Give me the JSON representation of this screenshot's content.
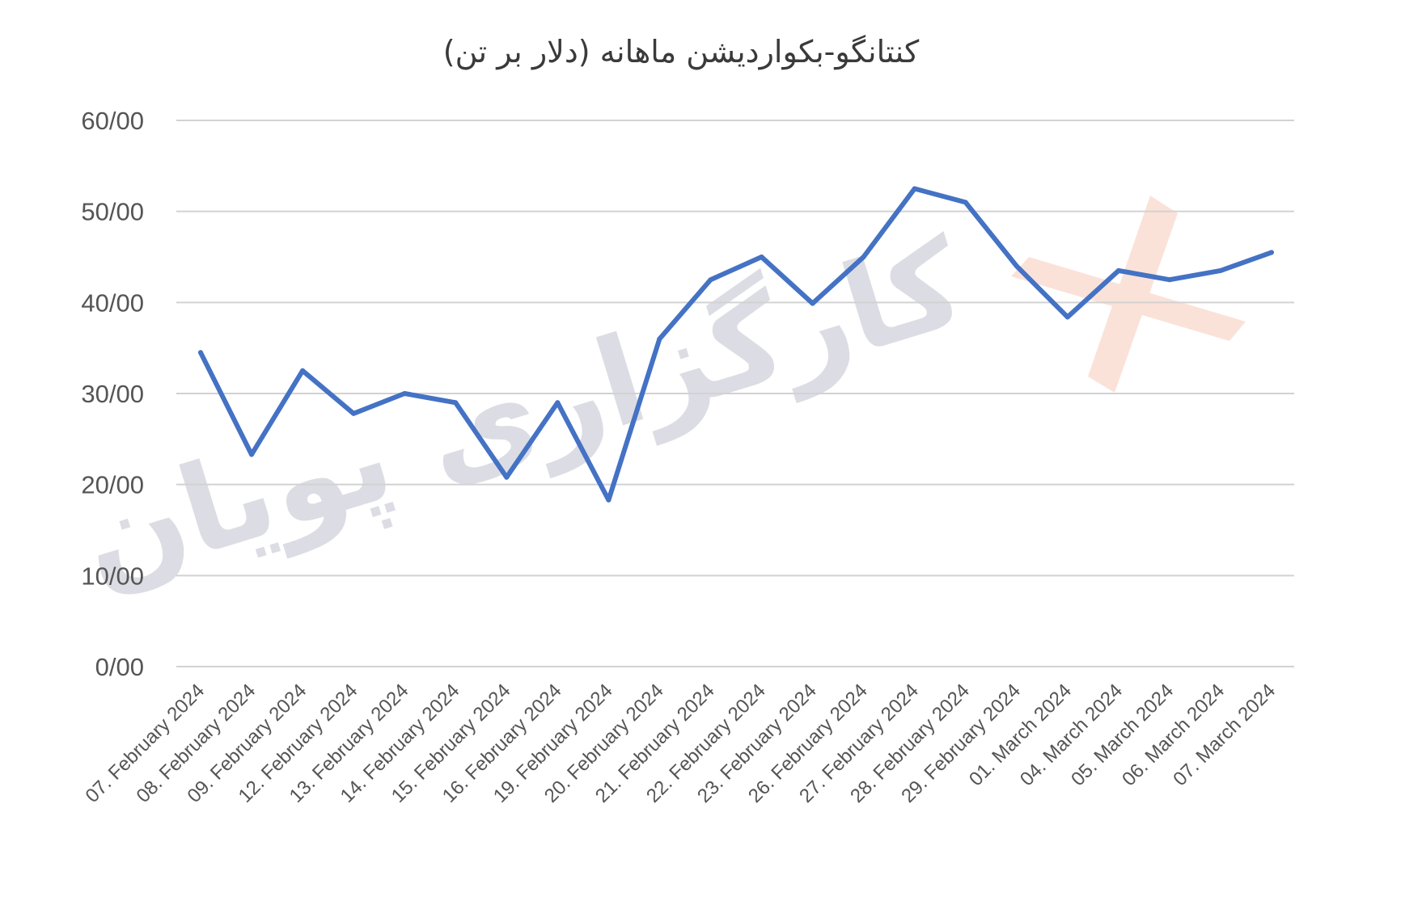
{
  "chart_data": {
    "type": "line",
    "title": "کنتانگو-بکواردیشن ماهانه (دلار بر تن)",
    "xlabel": "",
    "ylabel": "",
    "ylim": [
      0,
      60
    ],
    "yticks": [
      "0/00",
      "10/00",
      "20/00",
      "30/00",
      "40/00",
      "50/00",
      "60/00"
    ],
    "grid": true,
    "legend": "none",
    "categories": [
      "07. February 2024",
      "08. February 2024",
      "09. February 2024",
      "12. February 2024",
      "13. February 2024",
      "14. February 2024",
      "15. February 2024",
      "16. February 2024",
      "19. February 2024",
      "20. February 2024",
      "21. February 2024",
      "22. February 2024",
      "23. February 2024",
      "26. February 2024",
      "27. February 2024",
      "28. February 2024",
      "29. February 2024",
      "01. March 2024",
      "04. March 2024",
      "05. March 2024",
      "06. March 2024",
      "07. March 2024"
    ],
    "series": [
      {
        "color": "#4472c4",
        "values": [
          34.5,
          23.3,
          32.5,
          27.8,
          30.0,
          29.0,
          20.8,
          29.0,
          18.3,
          36.0,
          42.5,
          45.0,
          39.9,
          45.0,
          52.5,
          51.0,
          44.0,
          38.4,
          43.5,
          42.5,
          43.5,
          45.5
        ]
      }
    ]
  },
  "watermark": {
    "text": "کارگزاری پویان",
    "text_color": "#dcdce4",
    "logo_color": "#fbe2d9",
    "logo_icon": "pooyan-logo-icon"
  }
}
